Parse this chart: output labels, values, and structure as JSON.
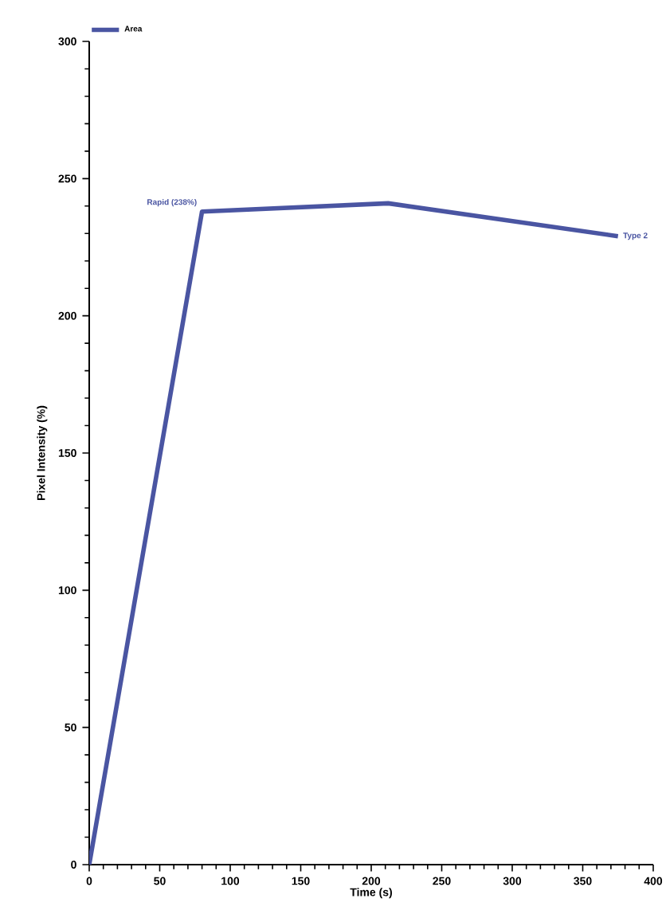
{
  "chart_data": {
    "type": "line",
    "xlabel": "Time (s)",
    "ylabel": "Pixel Intensity (%)",
    "x": [
      0,
      80,
      212,
      375
    ],
    "series": [
      {
        "name": "Area",
        "color": "#4a55a2",
        "values": [
          0,
          238,
          241,
          229
        ]
      }
    ],
    "xlim": [
      0,
      400
    ],
    "xticks": [
      0,
      50,
      100,
      150,
      200,
      250,
      300,
      350,
      400
    ],
    "ylim": [
      0,
      300
    ],
    "yticks": [
      0,
      50,
      100,
      150,
      200,
      250,
      300
    ],
    "annotations": [
      {
        "text": "Rapid (238%)",
        "x": 80,
        "y": 238
      },
      {
        "text": "Type 2",
        "x": 375,
        "y": 229
      }
    ],
    "legend": "top left",
    "grid": false,
    "marker": "none",
    "line_style": "solid"
  }
}
